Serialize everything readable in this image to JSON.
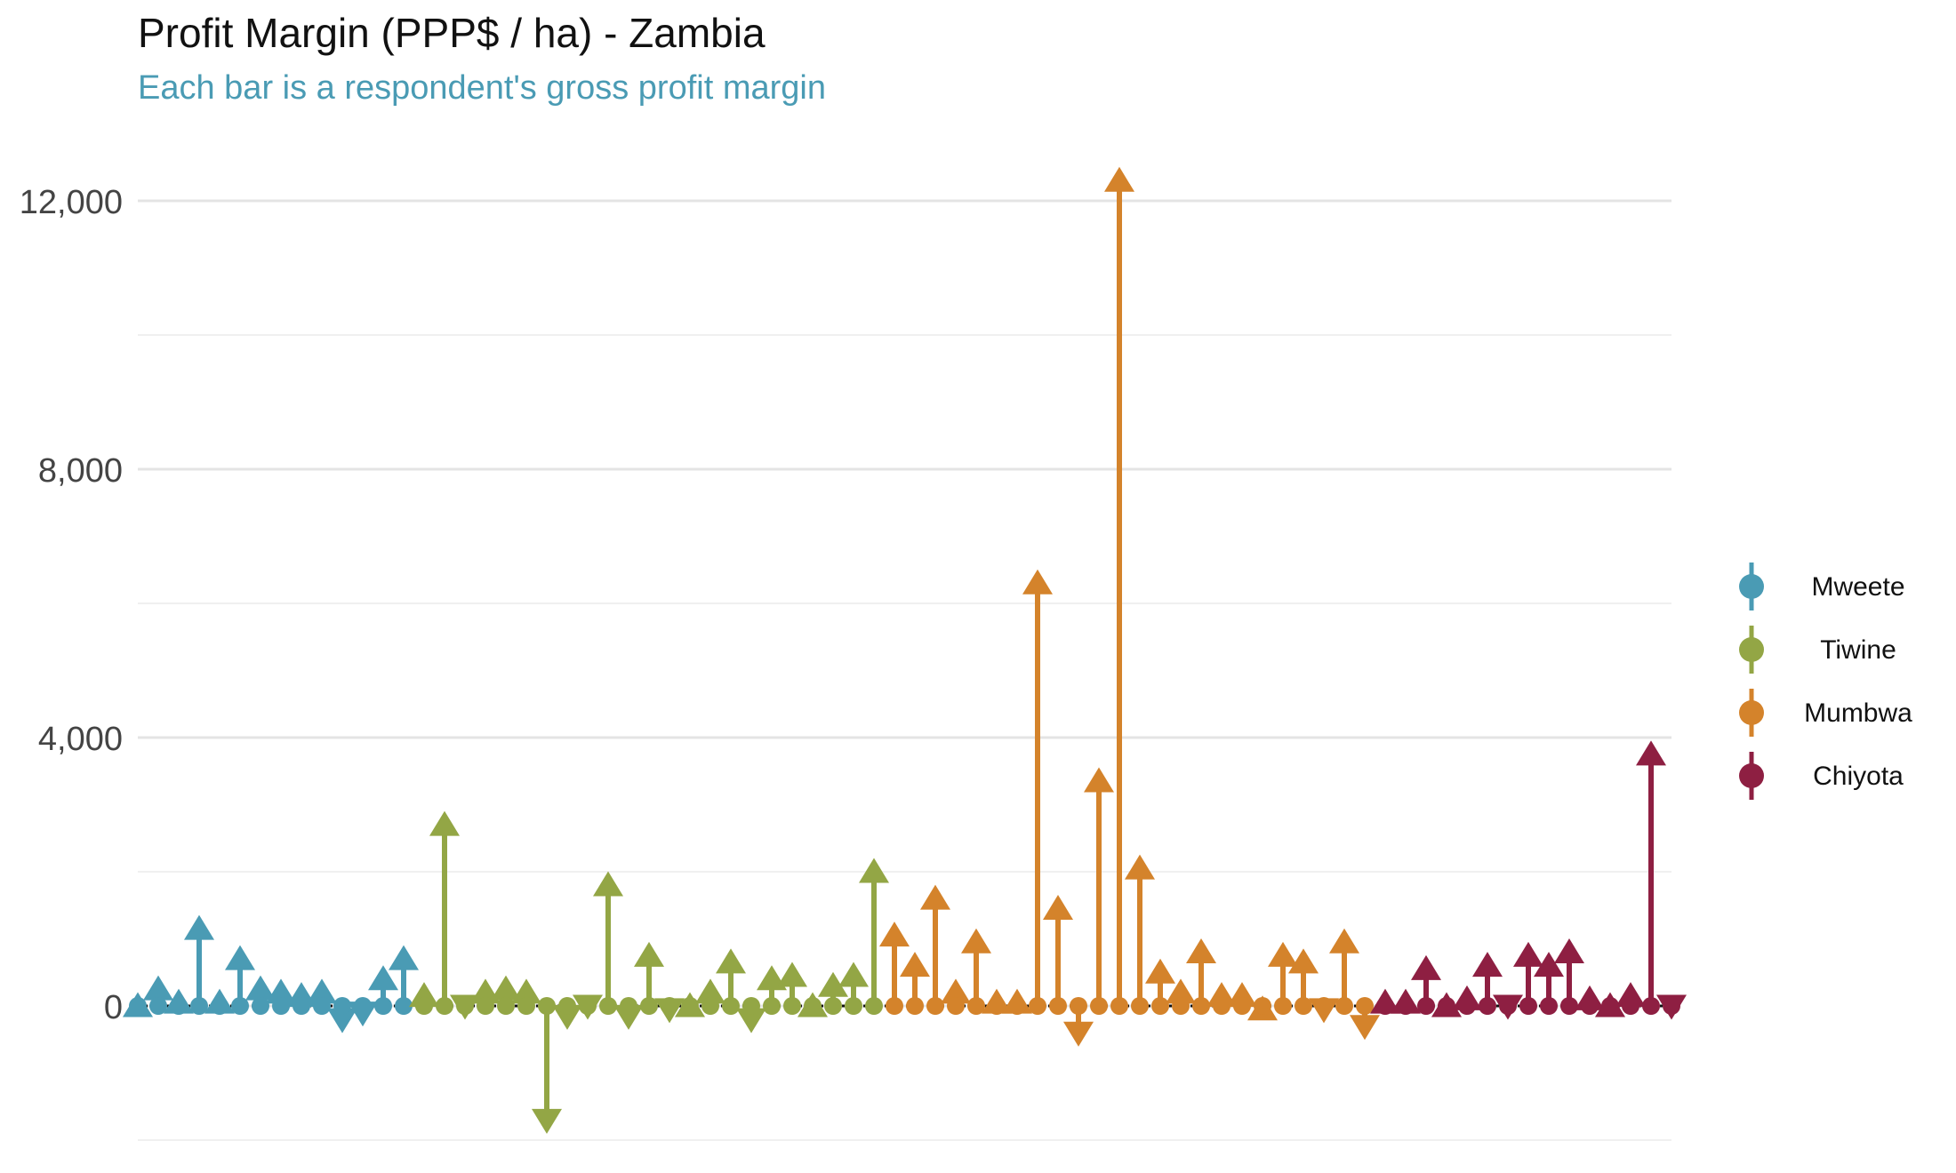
{
  "chart_data": {
    "type": "bar",
    "title": "Profit Margin (PPP$ / ha) - Zambia",
    "subtitle": "Each bar is a respondent's gross profit margin",
    "xlabel": "",
    "ylabel": "",
    "ylim": [
      -2900,
      12700
    ],
    "yticks": [
      0,
      4000,
      8000,
      12000
    ],
    "ytick_labels": [
      "0",
      "4,000",
      "8,000",
      "12,000"
    ],
    "grid": true,
    "legend_position": "right",
    "series": [
      {
        "name": "Mweete",
        "color": "#4a9bb4",
        "values": [
          100,
          350,
          150,
          1250,
          150,
          800,
          350,
          300,
          250,
          300,
          -300,
          -200,
          500,
          800
        ]
      },
      {
        "name": "Tiwine",
        "color": "#93a645",
        "values": [
          250,
          2800,
          -100,
          300,
          350,
          300,
          -1800,
          -250,
          -100,
          1900,
          -250,
          850,
          -150,
          100,
          300,
          750,
          -300,
          500,
          550,
          100,
          400,
          550,
          2100
        ]
      },
      {
        "name": "Mumbwa",
        "color": "#d4832b",
        "values": [
          1150,
          700,
          1700,
          300,
          1050,
          150,
          150,
          6400,
          1550,
          -500,
          3450,
          12400,
          2150,
          600,
          300,
          900,
          250,
          250,
          50,
          850,
          750,
          -150,
          1050,
          -400
        ]
      },
      {
        "name": "Chiyota",
        "color": "#8e1f42",
        "values": [
          150,
          150,
          650,
          100,
          200,
          700,
          -100,
          850,
          700,
          900,
          200,
          100,
          250,
          3850,
          -100
        ]
      }
    ]
  }
}
